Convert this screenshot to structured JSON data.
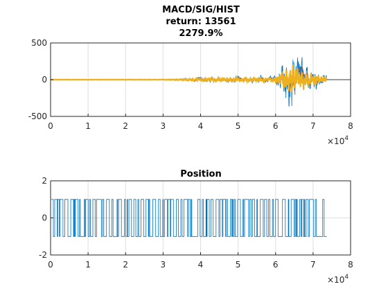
{
  "colors": {
    "macd": "#0072BD",
    "signal": "#D95319",
    "hist": "#EDB120",
    "position": "#0072BD",
    "grid": "#DFDFDF",
    "axis": "#262626"
  },
  "chart_data": [
    {
      "id": "macd-chart",
      "type": "line",
      "title_lines": [
        "MACD/SIG/HIST",
        "return: 13561",
        "2279.9%"
      ],
      "x_ticks": [
        0,
        1,
        2,
        3,
        4,
        5,
        6,
        7,
        8
      ],
      "x_tick_labels": [
        "0",
        "1",
        "2",
        "3",
        "4",
        "5",
        "6",
        "7",
        "8"
      ],
      "x_exponent_base": "×10",
      "x_exponent": "4",
      "xlim": [
        0,
        80000
      ],
      "ylim": [
        -500,
        500
      ],
      "y_ticks": [
        -500,
        0,
        500
      ],
      "y_tick_labels": [
        "-500",
        "0",
        "500"
      ],
      "grid": true,
      "data_end_x": 73600,
      "amplitude_envelope": {
        "x": [
          0,
          30000,
          34000,
          38000,
          42000,
          46000,
          50000,
          54000,
          58000,
          60000,
          62000,
          63000,
          64000,
          65000,
          66000,
          67000,
          68000,
          70000,
          72000,
          73600
        ],
        "y": [
          3,
          5,
          12,
          25,
          35,
          30,
          45,
          35,
          60,
          80,
          180,
          320,
          400,
          380,
          300,
          250,
          200,
          150,
          120,
          100
        ]
      },
      "series": [
        {
          "key": "macd",
          "style": "thin"
        },
        {
          "key": "signal",
          "style": "thin"
        },
        {
          "key": "hist",
          "style": "thick"
        }
      ]
    },
    {
      "id": "position-chart",
      "type": "line",
      "title": "Position",
      "x_ticks": [
        0,
        1,
        2,
        3,
        4,
        5,
        6,
        7,
        8
      ],
      "x_tick_labels": [
        "0",
        "1",
        "2",
        "3",
        "4",
        "5",
        "6",
        "7",
        "8"
      ],
      "x_exponent_base": "×10",
      "x_exponent": "4",
      "xlim": [
        0,
        80000
      ],
      "ylim": [
        -2,
        2
      ],
      "y_ticks": [
        -2,
        0,
        2
      ],
      "y_tick_labels": [
        "-2",
        "0",
        "2"
      ],
      "grid": true,
      "values_taken": [
        -1,
        1
      ],
      "data_start_x": 200,
      "data_end_x": 73600
    }
  ]
}
